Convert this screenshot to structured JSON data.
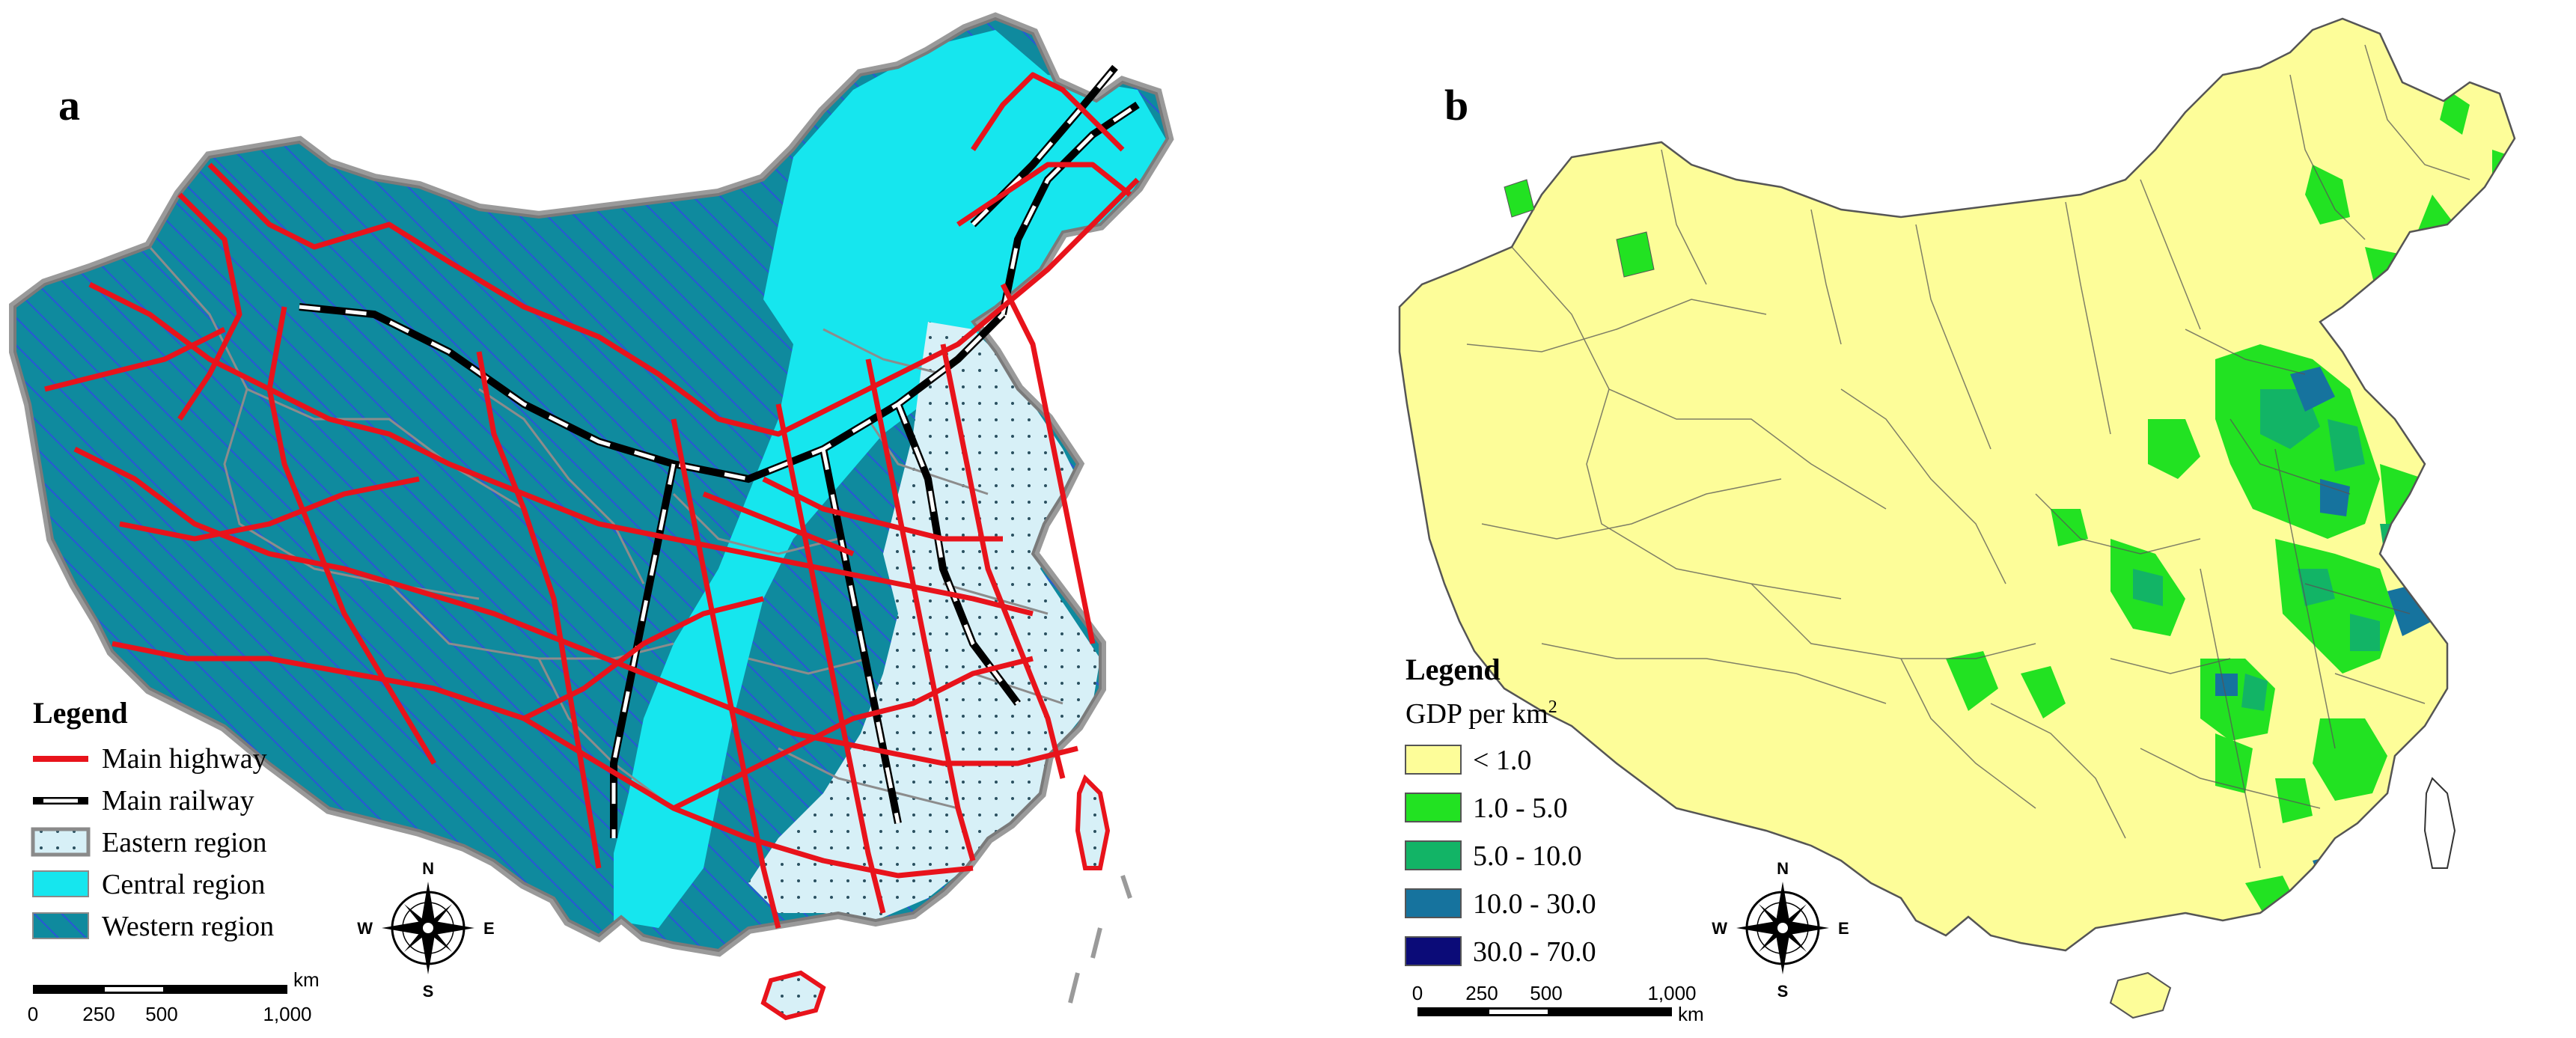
{
  "panel_a": {
    "letter": "a",
    "legend": {
      "title": "Legend",
      "items": [
        {
          "label": "Main highway",
          "symbol": "red-line",
          "color": "#e8131b"
        },
        {
          "label": "Main railway",
          "symbol": "black-white-dash"
        },
        {
          "label": "Eastern region",
          "symbol": "dotted-fill",
          "color": "#d7f0f7"
        },
        {
          "label": "Central region",
          "symbol": "fill",
          "color": "#16e6ee"
        },
        {
          "label": "Western region",
          "symbol": "hatched-fill",
          "color": "#0f8a9e"
        }
      ]
    },
    "scale": {
      "ticks": [
        "0",
        "250",
        "500",
        "1,000"
      ],
      "unit": "km"
    },
    "compass": {
      "n": "N",
      "s": "S",
      "e": "E",
      "w": "W"
    }
  },
  "panel_b": {
    "letter": "b",
    "legend": {
      "title": "Legend",
      "subtitle_base": "GDP per km",
      "subtitle_sup": "2",
      "classes": [
        {
          "label": "< 1.0",
          "color": "#fdfd99"
        },
        {
          "label": "1.0 - 5.0",
          "color": "#22e222"
        },
        {
          "label": "5.0 - 10.0",
          "color": "#12b466"
        },
        {
          "label": "10.0 - 30.0",
          "color": "#16739e"
        },
        {
          "label": "30.0 - 70.0",
          "color": "#0b0b78"
        }
      ]
    },
    "scale": {
      "ticks": [
        "0",
        "250",
        "500",
        "1,000"
      ],
      "unit": "km"
    },
    "compass": {
      "n": "N",
      "s": "S",
      "e": "E",
      "w": "W"
    }
  },
  "colors": {
    "highway": "#e8131b",
    "western": "#0f8a9e",
    "central": "#16e6ee",
    "eastern": "#d7f0f7",
    "border_gray": "#9a9a9a",
    "low_gdp": "#fdfd99"
  }
}
